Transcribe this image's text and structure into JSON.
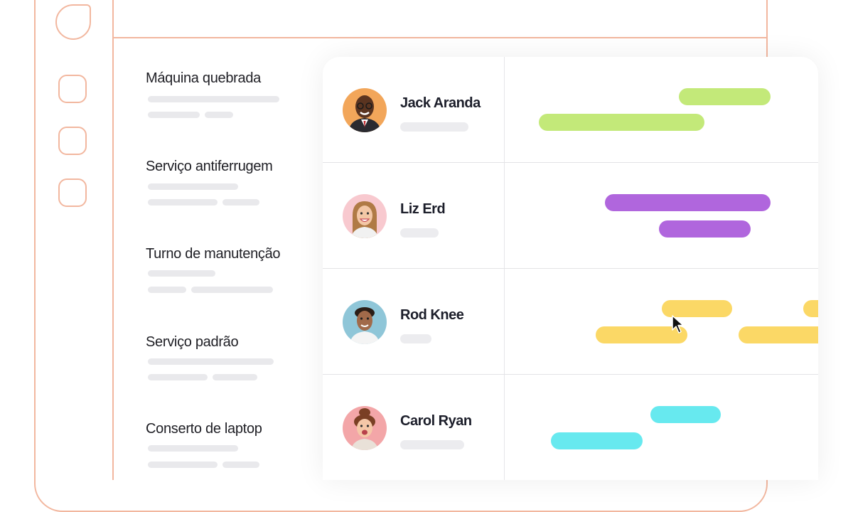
{
  "services": [
    {
      "title": "Máquina quebrada"
    },
    {
      "title": "Serviço antiferrugem"
    },
    {
      "title": "Turno de manutenção"
    },
    {
      "title": "Serviço padrão"
    },
    {
      "title": "Conserto de laptop"
    }
  ],
  "people": [
    {
      "name": "Jack Aranda",
      "avatar": "avatar-jack-icon"
    },
    {
      "name": "Liz Erd",
      "avatar": "avatar-liz-icon"
    },
    {
      "name": "Rod Knee",
      "avatar": "avatar-rod-icon"
    },
    {
      "name": "Carol Ryan",
      "avatar": "avatar-carol-icon"
    }
  ],
  "colors": {
    "frame_accent": "#f2b79f",
    "bar_green": "#c3e979",
    "bar_purple": "#b066dd",
    "bar_yellow": "#fbd866",
    "bar_cyan": "#67e9ef"
  }
}
